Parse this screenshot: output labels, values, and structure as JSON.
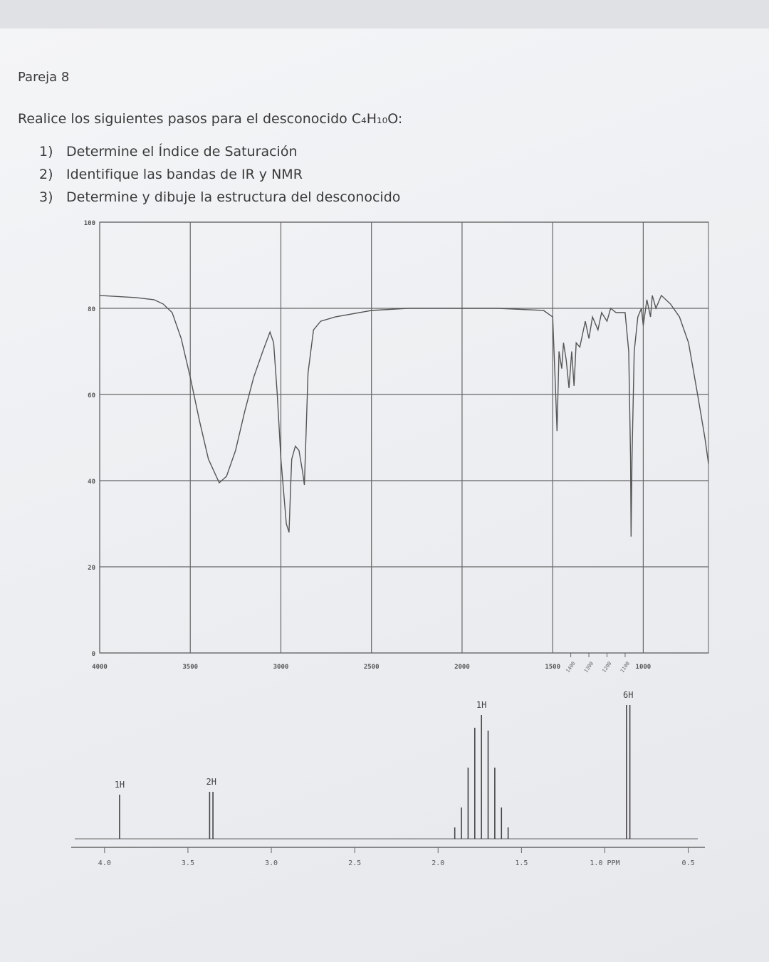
{
  "header": {
    "title": "Pareja 8"
  },
  "instructions": {
    "intro": "Realice los siguientes pasos para el desconocido C₄H₁₀O:",
    "steps": [
      {
        "number": "1)",
        "text": "Determine el Índice de Saturación"
      },
      {
        "number": "2)",
        "text": "Identifique las bandas de IR y NMR"
      },
      {
        "number": "3)",
        "text": "Determine y dibuje la estructura del desconocido"
      }
    ]
  },
  "chart_data": [
    {
      "type": "line",
      "x": [
        4000,
        3800,
        3700,
        3650,
        3600,
        3550,
        3500,
        3450,
        3400,
        3340,
        3300,
        3250,
        3200,
        3150,
        3100,
        3060,
        3040,
        3020,
        3000,
        2970,
        2955,
        2945,
        2940,
        2920,
        2900,
        2880,
        2870,
        2850,
        2820,
        2780,
        2700,
        2500,
        2300,
        2000,
        1800,
        1550,
        1500,
        1485,
        1476,
        1465,
        1450,
        1440,
        1425,
        1410,
        1395,
        1382,
        1370,
        1350,
        1320,
        1300,
        1280,
        1250,
        1230,
        1200,
        1180,
        1150,
        1100,
        1080,
        1070,
        1067,
        1062,
        1050,
        1030,
        1010,
        1000,
        980,
        960,
        950,
        930,
        900,
        850,
        800,
        750,
        700,
        660,
        640
      ],
      "values": [
        83,
        82.5,
        82,
        81,
        79,
        73,
        64,
        54,
        45,
        39.5,
        41,
        47,
        56,
        64,
        70,
        74.5,
        72,
        60,
        45,
        30,
        28,
        40,
        45,
        48,
        47,
        42,
        39,
        65,
        75,
        77,
        78,
        79.5,
        80,
        80,
        80,
        79.5,
        78,
        62,
        51.5,
        70,
        66,
        72,
        68,
        61.5,
        70,
        62,
        72,
        71,
        77,
        73,
        78,
        75,
        79,
        77,
        80,
        79,
        79,
        70,
        45,
        27,
        45,
        70,
        78,
        80,
        76,
        82,
        78,
        83,
        80,
        83,
        81,
        78,
        72,
        60,
        50,
        44
      ],
      "color": "#555555",
      "xlim": [
        4000,
        640
      ],
      "ylim": [
        0,
        100
      ],
      "xticks": [
        4000,
        3500,
        3000,
        2500,
        2000,
        1500,
        1000
      ],
      "minor_xticks": [
        1400,
        1300,
        1200,
        1100
      ],
      "yticks": [
        0,
        20,
        40,
        60,
        80,
        100
      ],
      "grid": true
    },
    {
      "type": "stem",
      "color": "#444444",
      "xlim": [
        4.2,
        0.4
      ],
      "xticks": [
        {
          "value": 4,
          "label": "4.0"
        },
        {
          "value": 3.5,
          "label": "3.5"
        },
        {
          "value": 3,
          "label": "3.0"
        },
        {
          "value": 2.5,
          "label": "2.5"
        },
        {
          "value": 2,
          "label": "2.0"
        },
        {
          "value": 1.5,
          "label": "1.5"
        },
        {
          "value": 1,
          "label": "1.0 PPM"
        },
        {
          "value": 0.5,
          "label": "0.5"
        }
      ],
      "peaks": [
        {
          "label": "1H",
          "lines": [
            {
              "ppm": 3.91,
              "intensity": 31
            }
          ]
        },
        {
          "label": "2H",
          "lines": [
            {
              "ppm": 3.37,
              "intensity": 33
            },
            {
              "ppm": 3.35,
              "intensity": 33
            }
          ]
        },
        {
          "label": "1H",
          "lines": [
            {
              "ppm": 1.9,
              "intensity": 8
            },
            {
              "ppm": 1.86,
              "intensity": 22
            },
            {
              "ppm": 1.82,
              "intensity": 50
            },
            {
              "ppm": 1.78,
              "intensity": 78
            },
            {
              "ppm": 1.74,
              "intensity": 87
            },
            {
              "ppm": 1.7,
              "intensity": 76
            },
            {
              "ppm": 1.66,
              "intensity": 50
            },
            {
              "ppm": 1.62,
              "intensity": 22
            },
            {
              "ppm": 1.58,
              "intensity": 8
            }
          ]
        },
        {
          "label": "6H",
          "lines": [
            {
              "ppm": 0.87,
              "intensity": 94
            },
            {
              "ppm": 0.85,
              "intensity": 94
            }
          ]
        }
      ]
    }
  ]
}
